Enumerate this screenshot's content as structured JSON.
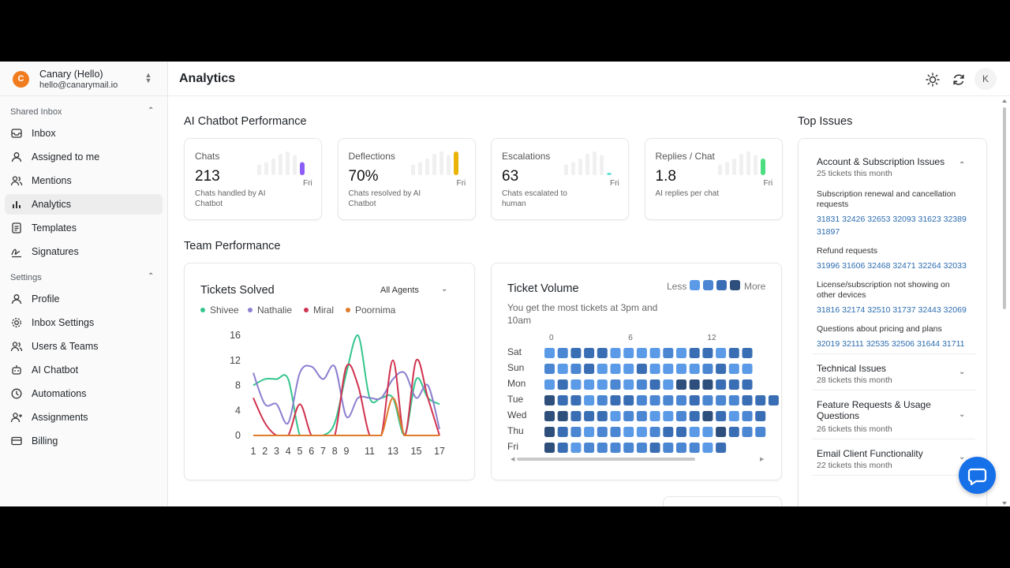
{
  "account": {
    "logo_letter": "C",
    "name": "Canary (Hello)",
    "email": "hello@canarymail.io"
  },
  "sidebar": {
    "shared_inbox_label": "Shared Inbox",
    "shared_items": [
      {
        "label": "Inbox",
        "icon": "inbox-icon"
      },
      {
        "label": "Assigned to me",
        "icon": "user-icon"
      },
      {
        "label": "Mentions",
        "icon": "users-icon"
      },
      {
        "label": "Analytics",
        "icon": "bar-chart-icon"
      },
      {
        "label": "Templates",
        "icon": "document-icon"
      },
      {
        "label": "Signatures",
        "icon": "signature-icon"
      }
    ],
    "settings_label": "Settings",
    "settings_items": [
      {
        "label": "Profile",
        "icon": "user-icon"
      },
      {
        "label": "Inbox Settings",
        "icon": "gear-icon"
      },
      {
        "label": "Users & Teams",
        "icon": "users-icon"
      },
      {
        "label": "AI Chatbot",
        "icon": "bot-icon"
      },
      {
        "label": "Automations",
        "icon": "clock-icon"
      },
      {
        "label": "Assignments",
        "icon": "user-plus-icon"
      },
      {
        "label": "Billing",
        "icon": "card-icon"
      }
    ],
    "active": "Analytics"
  },
  "header": {
    "title": "Analytics",
    "avatar_letter": "K"
  },
  "chatbot": {
    "title": "AI Chatbot Performance",
    "cards": [
      {
        "label": "Chats",
        "value": "213",
        "desc": "Chats handled by AI Chatbot",
        "day": "Fri",
        "accent": "#8b5cf6",
        "last_level": 0.55
      },
      {
        "label": "Deflections",
        "value": "70%",
        "desc": "Chats resolved by AI Chatbot",
        "day": "Fri",
        "accent": "#eab308",
        "last_level": 1.0
      },
      {
        "label": "Escalations",
        "value": "63",
        "desc": "Chats escalated to human",
        "day": "Fri",
        "accent": "#5ee0d4",
        "last_level": 0.1
      },
      {
        "label": "Replies / Chat",
        "value": "1.8",
        "desc": "AI replies per chat",
        "day": "Fri",
        "accent": "#4ade80",
        "last_level": 0.7
      }
    ]
  },
  "team": {
    "title": "Team Performance",
    "tickets_solved": {
      "title": "Tickets Solved",
      "agent_filter": "All Agents"
    },
    "ticket_volume": {
      "title": "Ticket Volume",
      "subtitle": "You get the most tickets at 3pm and 10am",
      "less": "Less",
      "more": "More"
    }
  },
  "chart_data": [
    {
      "type": "line",
      "x": [
        1,
        2,
        3,
        4,
        5,
        6,
        7,
        8,
        9,
        10,
        11,
        12,
        13,
        14,
        15,
        16,
        17
      ],
      "xticks": [
        "1",
        "2",
        "3",
        "4",
        "5",
        "6",
        "7",
        "8",
        "9",
        "11",
        "13",
        "15",
        "17"
      ],
      "yticks": [
        "0",
        "4",
        "8",
        "12",
        "16"
      ],
      "ylim": [
        0,
        16
      ],
      "series": [
        {
          "name": "Shivee",
          "color": "#34c58d",
          "values": [
            8,
            9,
            9,
            9,
            0,
            0,
            0,
            2,
            10,
            16,
            6,
            6,
            6,
            0,
            9,
            6,
            5
          ]
        },
        {
          "name": "Nathalie",
          "color": "#8b7fcf",
          "values": [
            10,
            5,
            5,
            2,
            10,
            11,
            9,
            11,
            3,
            6,
            6,
            6,
            9,
            10,
            6,
            8,
            1
          ]
        },
        {
          "name": "Miral",
          "color": "#d0324f",
          "values": [
            6,
            2,
            0,
            0,
            5,
            0,
            0,
            0,
            11,
            8,
            0,
            0,
            12,
            0,
            12,
            6,
            0
          ]
        },
        {
          "name": "Poornima",
          "color": "#e07b2a",
          "values": [
            0,
            0,
            0,
            0,
            0,
            0,
            0,
            0,
            0,
            0,
            0,
            0,
            6,
            0,
            0,
            0,
            0
          ]
        }
      ]
    },
    {
      "type": "heatmap",
      "rows": [
        "Sat",
        "Sun",
        "Mon",
        "Tue",
        "Wed",
        "Thu",
        "Fri"
      ],
      "xticks": [
        {
          "label": "0",
          "col": 0
        },
        {
          "label": "6",
          "col": 6
        },
        {
          "label": "12",
          "col": 12
        }
      ],
      "levels": [
        [
          0,
          1,
          2,
          2,
          2,
          0,
          0,
          0,
          0,
          1,
          0,
          2,
          2,
          0,
          2,
          2
        ],
        [
          1,
          0,
          1,
          2,
          0,
          0,
          0,
          2,
          0,
          0,
          0,
          0,
          1,
          2,
          0,
          0
        ],
        [
          0,
          2,
          0,
          0,
          0,
          1,
          0,
          1,
          2,
          0,
          3,
          3,
          3,
          2,
          2,
          2
        ],
        [
          3,
          2,
          2,
          0,
          1,
          2,
          2,
          1,
          1,
          1,
          1,
          2,
          1,
          1,
          1,
          2,
          2,
          2
        ],
        [
          3,
          3,
          2,
          2,
          2,
          0,
          1,
          1,
          0,
          0,
          1,
          2,
          3,
          2,
          0,
          1,
          2
        ],
        [
          3,
          2,
          1,
          0,
          1,
          1,
          0,
          0,
          1,
          2,
          2,
          0,
          0,
          3,
          2,
          1,
          1
        ],
        [
          3,
          2,
          0,
          1,
          1,
          1,
          1,
          1,
          2,
          1,
          1,
          1,
          0,
          2
        ]
      ],
      "palette": [
        "#5a9ae6",
        "#4a86d2",
        "#3a6eb4",
        "#2e4f7c"
      ]
    }
  ],
  "top_issues": {
    "title": "Top Issues",
    "groups": [
      {
        "title": "Account & Subscription Issues",
        "sub": "25 tickets this month",
        "expanded": true,
        "items": [
          {
            "title": "Subscription renewal and cancellation requests",
            "ids": [
              "31831",
              "32426",
              "32653",
              "32093",
              "31623",
              "32389",
              "31897"
            ]
          },
          {
            "title": "Refund requests",
            "ids": [
              "31996",
              "31606",
              "32468",
              "32471",
              "32264",
              "32033"
            ]
          },
          {
            "title": "License/subscription not showing on other devices",
            "ids": [
              "31816",
              "32174",
              "32510",
              "31737",
              "32443",
              "32069"
            ]
          },
          {
            "title": "Questions about pricing and plans",
            "ids": [
              "32019",
              "32111",
              "32535",
              "32506",
              "31644",
              "31711"
            ]
          }
        ]
      },
      {
        "title": "Technical Issues",
        "sub": "28 tickets this month",
        "expanded": false
      },
      {
        "title": "Feature Requests & Usage Questions",
        "sub": "26 tickets this month",
        "expanded": false
      },
      {
        "title": "Email Client Functionality",
        "sub": "22 tickets this month",
        "expanded": false
      }
    ]
  }
}
